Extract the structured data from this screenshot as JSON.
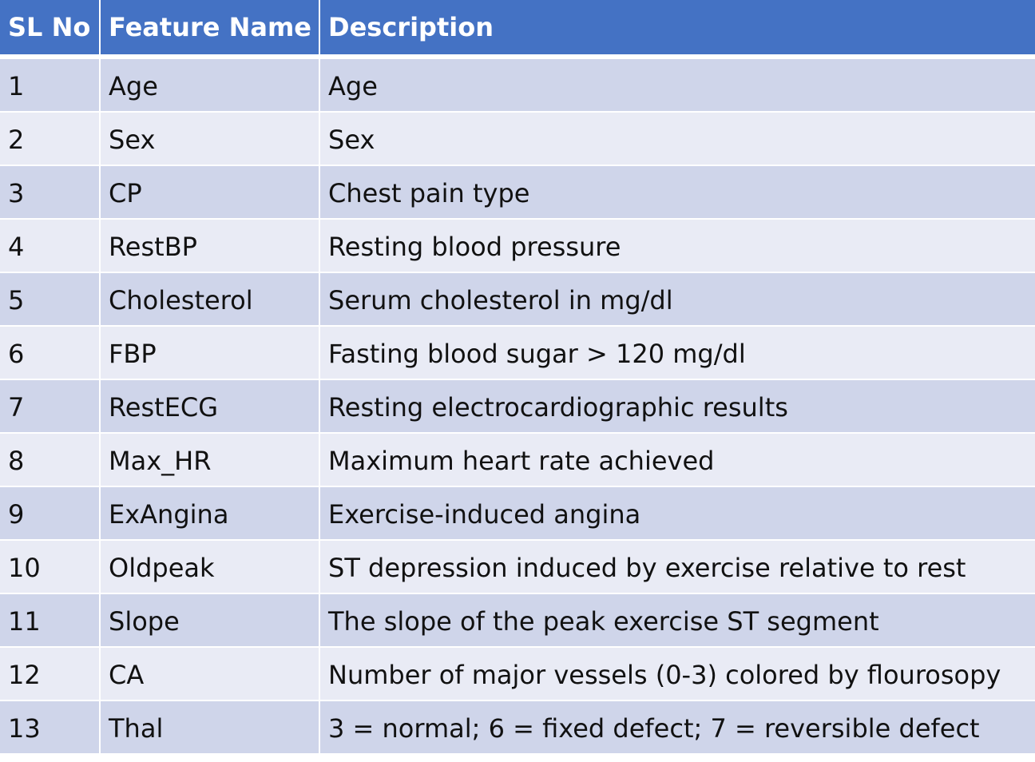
{
  "table": {
    "headers": [
      "SL No",
      "Feature Name",
      "Description"
    ],
    "rows": [
      {
        "sl": "1",
        "feature": "Age",
        "description": "Age"
      },
      {
        "sl": "2",
        "feature": "Sex",
        "description": "Sex"
      },
      {
        "sl": "3",
        "feature": "CP",
        "description": "Chest pain type"
      },
      {
        "sl": "4",
        "feature": "RestBP",
        "description": "Resting blood pressure"
      },
      {
        "sl": "5",
        "feature": "Cholesterol",
        "description": "Serum cholesterol in mg/dl"
      },
      {
        "sl": "6",
        "feature": "FBP",
        "description": "Fasting blood sugar > 120 mg/dl"
      },
      {
        "sl": "7",
        "feature": "RestECG",
        "description": "Resting electrocardiographic results"
      },
      {
        "sl": "8",
        "feature": "Max_HR",
        "description": "Maximum heart rate achieved"
      },
      {
        "sl": "9",
        "feature": "ExAngina",
        "description": "Exercise-induced angina"
      },
      {
        "sl": "10",
        "feature": "Oldpeak",
        "description": " ST depression induced by exercise relative to rest"
      },
      {
        "sl": "11",
        "feature": "Slope",
        "description": "The slope of the peak exercise ST segment"
      },
      {
        "sl": "12",
        "feature": "CA",
        "description": "Number of major vessels (0-3) colored by flourosopy"
      },
      {
        "sl": "13",
        "feature": "Thal",
        "description": " 3 = normal; 6 = fixed defect; 7 = reversible defect"
      }
    ]
  },
  "colors": {
    "header_bg": "#4472c4",
    "row_odd_bg": "#cfd5ea",
    "row_even_bg": "#e9ebf5"
  }
}
